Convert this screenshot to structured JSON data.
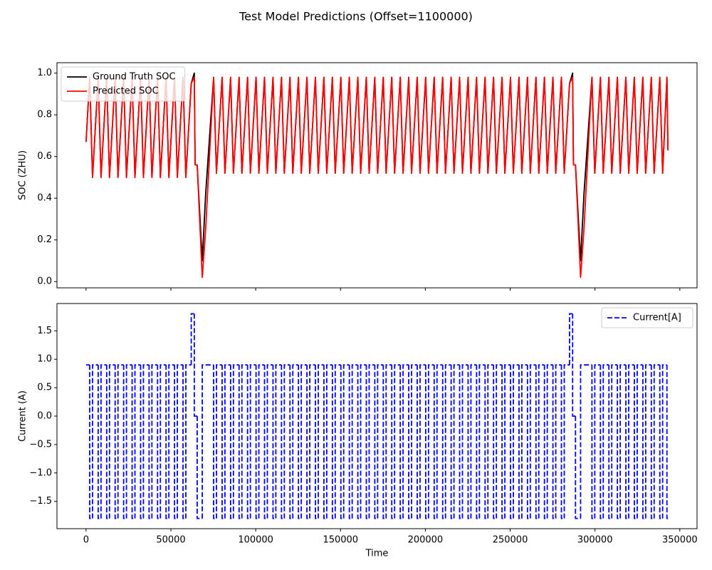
{
  "title": "Test Model Predictions (Offset=1100000)",
  "chart_data": [
    {
      "type": "line",
      "ylabel": "SOC (ZHU)",
      "show_xtick_labels": false,
      "legend": "upper left",
      "xlim": [
        -17150,
        360150
      ],
      "ylim": [
        -0.03,
        1.05
      ],
      "xticks": [
        0,
        50000,
        100000,
        150000,
        200000,
        250000,
        300000,
        350000
      ],
      "yticks": [
        {
          "value": 0,
          "label": "0.0"
        },
        0.2,
        0.4,
        0.6,
        0.8,
        {
          "value": 1,
          "label": "1.0"
        }
      ],
      "x": [
        0,
        2150,
        3817,
        7150,
        8817,
        12150,
        13817,
        17150,
        18817,
        22150,
        23817,
        27150,
        28817,
        32150,
        33817,
        37150,
        38817,
        42150,
        43817,
        47150,
        48817,
        52150,
        53817,
        57150,
        58817,
        62000,
        63800,
        64300,
        65500,
        68500,
        70500,
        75200,
        76867,
        80200,
        81867,
        85200,
        86867,
        90200,
        91867,
        95200,
        96867,
        100200,
        101867,
        105200,
        106867,
        110200,
        111867,
        115200,
        116867,
        120200,
        121867,
        125200,
        126867,
        130200,
        131867,
        135200,
        136867,
        140200,
        141867,
        145200,
        146867,
        150200,
        151867,
        155200,
        156867,
        160200,
        161867,
        165200,
        166867,
        170200,
        171867,
        175200,
        176867,
        180200,
        181867,
        185200,
        186867,
        190200,
        191867,
        195200,
        196867,
        200200,
        201867,
        205200,
        206867,
        210200,
        211867,
        215200,
        216867,
        220200,
        221867,
        225200,
        226867,
        230200,
        231867,
        235200,
        236867,
        240200,
        241867,
        245200,
        246867,
        250200,
        251867,
        255200,
        256867,
        260200,
        261867,
        265200,
        266867,
        270200,
        271867,
        275200,
        276867,
        280200,
        281867,
        285000,
        286800,
        287300,
        288500,
        291500,
        293500,
        298200,
        299867,
        303200,
        304867,
        308200,
        309867,
        313200,
        314867,
        318200,
        319867,
        323200,
        324867,
        328200,
        329867,
        333200,
        334867,
        338200,
        339867,
        342400,
        343000
      ],
      "series": [
        {
          "name": "Ground Truth SOC",
          "color": "#000000",
          "values": [
            0.67,
            0.98,
            0.5,
            0.98,
            0.5,
            0.98,
            0.5,
            0.98,
            0.5,
            0.98,
            0.5,
            0.98,
            0.5,
            0.98,
            0.5,
            0.98,
            0.5,
            0.98,
            0.5,
            0.98,
            0.5,
            0.98,
            0.5,
            0.98,
            0.5,
            0.95,
            1.0,
            0.56,
            0.56,
            0.1,
            0.42,
            0.98,
            0.52,
            0.98,
            0.52,
            0.98,
            0.52,
            0.98,
            0.52,
            0.98,
            0.52,
            0.98,
            0.52,
            0.98,
            0.52,
            0.98,
            0.52,
            0.98,
            0.52,
            0.98,
            0.52,
            0.98,
            0.52,
            0.98,
            0.52,
            0.98,
            0.52,
            0.98,
            0.52,
            0.98,
            0.52,
            0.98,
            0.52,
            0.98,
            0.52,
            0.98,
            0.52,
            0.98,
            0.52,
            0.98,
            0.52,
            0.98,
            0.52,
            0.98,
            0.52,
            0.98,
            0.52,
            0.98,
            0.52,
            0.98,
            0.52,
            0.98,
            0.52,
            0.98,
            0.52,
            0.98,
            0.52,
            0.98,
            0.52,
            0.98,
            0.52,
            0.98,
            0.52,
            0.98,
            0.52,
            0.98,
            0.52,
            0.98,
            0.52,
            0.98,
            0.52,
            0.98,
            0.52,
            0.98,
            0.52,
            0.98,
            0.52,
            0.98,
            0.52,
            0.98,
            0.52,
            0.98,
            0.52,
            0.98,
            0.52,
            0.95,
            1.0,
            0.56,
            0.56,
            0.1,
            0.42,
            0.98,
            0.52,
            0.98,
            0.52,
            0.98,
            0.52,
            0.98,
            0.52,
            0.98,
            0.52,
            0.98,
            0.52,
            0.98,
            0.52,
            0.98,
            0.52,
            0.98,
            0.52,
            0.98,
            0.63
          ]
        },
        {
          "name": "Predicted SOC",
          "color": "#ff0000",
          "values": [
            0.67,
            0.98,
            0.5,
            0.98,
            0.5,
            0.98,
            0.5,
            0.98,
            0.5,
            0.98,
            0.5,
            0.98,
            0.5,
            0.98,
            0.5,
            0.98,
            0.5,
            0.98,
            0.5,
            0.98,
            0.5,
            0.98,
            0.5,
            0.98,
            0.5,
            0.95,
            0.98,
            0.56,
            0.56,
            0.02,
            0.25,
            0.98,
            0.52,
            0.98,
            0.52,
            0.98,
            0.52,
            0.98,
            0.52,
            0.98,
            0.52,
            0.98,
            0.52,
            0.98,
            0.52,
            0.98,
            0.52,
            0.98,
            0.52,
            0.98,
            0.52,
            0.98,
            0.52,
            0.98,
            0.52,
            0.98,
            0.52,
            0.98,
            0.52,
            0.98,
            0.52,
            0.98,
            0.52,
            0.98,
            0.52,
            0.98,
            0.52,
            0.98,
            0.52,
            0.98,
            0.52,
            0.98,
            0.52,
            0.98,
            0.52,
            0.98,
            0.52,
            0.98,
            0.52,
            0.98,
            0.52,
            0.98,
            0.52,
            0.98,
            0.52,
            0.98,
            0.52,
            0.98,
            0.52,
            0.98,
            0.52,
            0.98,
            0.52,
            0.98,
            0.52,
            0.98,
            0.52,
            0.98,
            0.52,
            0.98,
            0.52,
            0.98,
            0.52,
            0.98,
            0.52,
            0.98,
            0.52,
            0.98,
            0.52,
            0.98,
            0.52,
            0.98,
            0.52,
            0.98,
            0.52,
            0.95,
            0.98,
            0.56,
            0.56,
            0.02,
            0.25,
            0.98,
            0.52,
            0.98,
            0.52,
            0.98,
            0.52,
            0.98,
            0.52,
            0.98,
            0.52,
            0.98,
            0.52,
            0.98,
            0.52,
            0.98,
            0.52,
            0.98,
            0.52,
            0.98,
            0.63
          ]
        }
      ]
    },
    {
      "type": "line",
      "drawstyle": "steps-post",
      "line_style": "dashed",
      "xlabel": "Time",
      "ylabel": "Current (A)",
      "show_xtick_labels": true,
      "legend": "upper right",
      "xlim": [
        -17150,
        360150
      ],
      "ylim": [
        -1.98,
        1.98
      ],
      "xticks": [
        0,
        50000,
        100000,
        150000,
        200000,
        250000,
        300000,
        350000
      ],
      "yticks": [
        {
          "value": -1.5,
          "label": "−1.5"
        },
        {
          "value": -1,
          "label": "−1.0"
        },
        {
          "value": -0.5,
          "label": "−0.5"
        },
        {
          "value": 0,
          "label": "0.0"
        },
        0.5,
        {
          "value": 1,
          "label": "1.0"
        },
        1.5
      ],
      "x": [
        0,
        2150,
        3817,
        7150,
        8817,
        12150,
        13817,
        17150,
        18817,
        22150,
        23817,
        27150,
        28817,
        32150,
        33817,
        37150,
        38817,
        42150,
        43817,
        47150,
        48817,
        52150,
        53817,
        57150,
        58817,
        62000,
        63800,
        64300,
        65500,
        68500,
        70500,
        75200,
        76867,
        80200,
        81867,
        85200,
        86867,
        90200,
        91867,
        95200,
        96867,
        100200,
        101867,
        105200,
        106867,
        110200,
        111867,
        115200,
        116867,
        120200,
        121867,
        125200,
        126867,
        130200,
        131867,
        135200,
        136867,
        140200,
        141867,
        145200,
        146867,
        150200,
        151867,
        155200,
        156867,
        160200,
        161867,
        165200,
        166867,
        170200,
        171867,
        175200,
        176867,
        180200,
        181867,
        185200,
        186867,
        190200,
        191867,
        195200,
        196867,
        200200,
        201867,
        205200,
        206867,
        210200,
        211867,
        215200,
        216867,
        220200,
        221867,
        225200,
        226867,
        230200,
        231867,
        235200,
        236867,
        240200,
        241867,
        245200,
        246867,
        250200,
        251867,
        255200,
        256867,
        260200,
        261867,
        265200,
        266867,
        270200,
        271867,
        275200,
        276867,
        280200,
        281867,
        285000,
        286800,
        287300,
        288500,
        291500,
        293500,
        298200,
        299867,
        303200,
        304867,
        308200,
        309867,
        313200,
        314867,
        318200,
        319867,
        323200,
        324867,
        328200,
        329867,
        333200,
        334867,
        338200,
        339867,
        342400,
        343000
      ],
      "series": [
        {
          "name": "Current[A]",
          "color": "#0000ff",
          "values": [
            0.9,
            -1.8,
            0.9,
            -1.8,
            0.9,
            -1.8,
            0.9,
            -1.8,
            0.9,
            -1.8,
            0.9,
            -1.8,
            0.9,
            -1.8,
            0.9,
            -1.8,
            0.9,
            -1.8,
            0.9,
            -1.8,
            0.9,
            -1.8,
            0.9,
            -1.8,
            0.9,
            1.8,
            0,
            0,
            -1.8,
            0.9,
            0.9,
            -1.8,
            0.9,
            -1.8,
            0.9,
            -1.8,
            0.9,
            -1.8,
            0.9,
            -1.8,
            0.9,
            -1.8,
            0.9,
            -1.8,
            0.9,
            -1.8,
            0.9,
            -1.8,
            0.9,
            -1.8,
            0.9,
            -1.8,
            0.9,
            -1.8,
            0.9,
            -1.8,
            0.9,
            -1.8,
            0.9,
            -1.8,
            0.9,
            -1.8,
            0.9,
            -1.8,
            0.9,
            -1.8,
            0.9,
            -1.8,
            0.9,
            -1.8,
            0.9,
            -1.8,
            0.9,
            -1.8,
            0.9,
            -1.8,
            0.9,
            -1.8,
            0.9,
            -1.8,
            0.9,
            -1.8,
            0.9,
            -1.8,
            0.9,
            -1.8,
            0.9,
            -1.8,
            0.9,
            -1.8,
            0.9,
            -1.8,
            0.9,
            -1.8,
            0.9,
            -1.8,
            0.9,
            -1.8,
            0.9,
            -1.8,
            0.9,
            -1.8,
            0.9,
            -1.8,
            0.9,
            -1.8,
            0.9,
            -1.8,
            0.9,
            -1.8,
            0.9,
            -1.8,
            0.9,
            -1.8,
            0.9,
            1.8,
            0,
            0,
            -1.8,
            0.9,
            0.9,
            -1.8,
            0.9,
            -1.8,
            0.9,
            -1.8,
            0.9,
            -1.8,
            0.9,
            -1.8,
            0.9,
            -1.8,
            0.9,
            -1.8,
            0.9,
            -1.8,
            0.9,
            -1.8,
            0.9,
            -1.8,
            -1.8
          ]
        }
      ]
    }
  ]
}
